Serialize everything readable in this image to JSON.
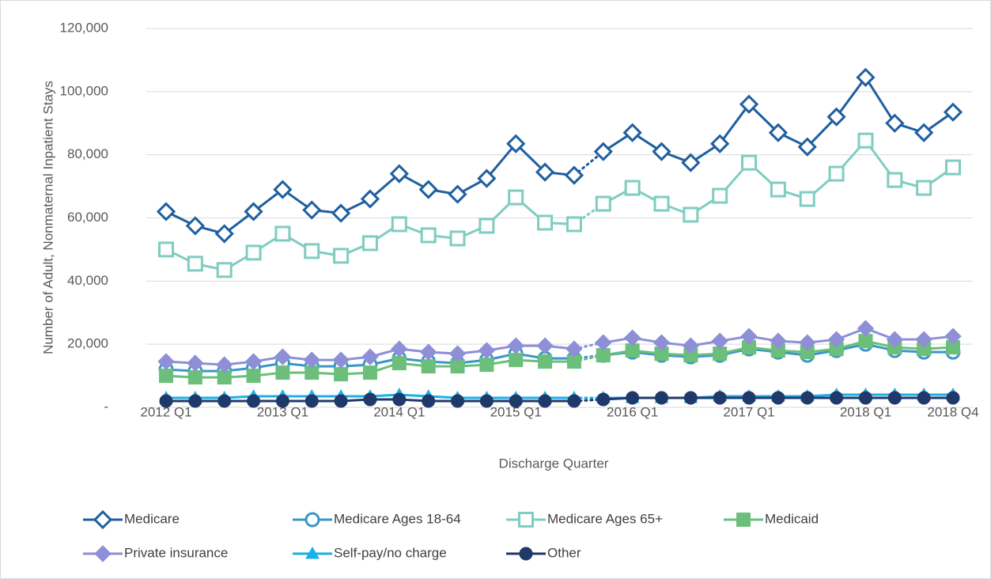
{
  "chart_data": {
    "type": "line",
    "x_label": "Discharge Quarter",
    "y_label": "Number of Adult, Nonmaternal Inpatient Stays",
    "categories": [
      "2012 Q1",
      null,
      null,
      null,
      "2013 Q1",
      null,
      null,
      null,
      "2014 Q1",
      null,
      null,
      null,
      "2015 Q1",
      null,
      null,
      null,
      "2016 Q1",
      null,
      null,
      null,
      "2017 Q1",
      null,
      null,
      null,
      "2018 Q1",
      null,
      null,
      "2018 Q4"
    ],
    "ylim": [
      0,
      120000
    ],
    "yticks": [
      {
        "value": 0,
        "label": "-"
      },
      {
        "value": 20000,
        "label": "20,000"
      },
      {
        "value": 40000,
        "label": "40,000"
      },
      {
        "value": 60000,
        "label": "60,000"
      },
      {
        "value": 80000,
        "label": "80,000"
      },
      {
        "value": 100000,
        "label": "100,000"
      },
      {
        "value": 120000,
        "label": "120,000"
      }
    ],
    "grid": true,
    "legend": "bottom",
    "series": [
      {
        "name": "Medicare",
        "color": "#1f5fa0",
        "marker": "diamond-open",
        "values": [
          62000,
          57500,
          55000,
          62000,
          69000,
          62500,
          61500,
          66000,
          74000,
          69000,
          67500,
          72500,
          83500,
          74500,
          73500,
          81000,
          87000,
          81000,
          77500,
          83500,
          96000,
          87000,
          82500,
          92000,
          104500,
          90000,
          87000,
          93500
        ]
      },
      {
        "name": "Medicare Ages 18-64",
        "color": "#3a96c8",
        "marker": "circle-open",
        "values": [
          12000,
          11500,
          11500,
          12500,
          14000,
          13000,
          13000,
          13500,
          15500,
          14500,
          14000,
          15000,
          17000,
          15500,
          15500,
          16500,
          17500,
          16500,
          16000,
          16500,
          18500,
          17500,
          16500,
          18000,
          20000,
          18000,
          17500,
          17500
        ]
      },
      {
        "name": "Medicare Ages 65+",
        "color": "#7fcdc0",
        "marker": "square-open",
        "values": [
          50000,
          45500,
          43500,
          49000,
          55000,
          49500,
          48000,
          52000,
          58000,
          54500,
          53500,
          57500,
          66500,
          58500,
          58000,
          64500,
          69500,
          64500,
          61000,
          67000,
          77500,
          69000,
          66000,
          74000,
          84500,
          72000,
          69500,
          76000
        ]
      },
      {
        "name": "Medicaid",
        "color": "#6bbf7b",
        "marker": "square",
        "values": [
          10000,
          9500,
          9500,
          10000,
          11000,
          11000,
          10500,
          11000,
          14000,
          13000,
          13000,
          13500,
          15000,
          14500,
          14500,
          16500,
          18000,
          17000,
          16500,
          17000,
          19000,
          18000,
          17500,
          18500,
          21000,
          19000,
          18500,
          19000
        ]
      },
      {
        "name": "Private insurance",
        "color": "#8e8fd6",
        "marker": "diamond",
        "values": [
          14500,
          14000,
          13500,
          14500,
          16000,
          15000,
          15000,
          16000,
          18500,
          17500,
          17000,
          18000,
          19500,
          19500,
          18500,
          20500,
          22000,
          20500,
          19500,
          21000,
          22500,
          21000,
          20500,
          21500,
          25000,
          21500,
          21500,
          22500
        ]
      },
      {
        "name": "Self-pay/no charge",
        "color": "#1ab0e8",
        "marker": "triangle",
        "values": [
          3000,
          3000,
          3000,
          3500,
          3500,
          3500,
          3500,
          3500,
          4000,
          3500,
          3000,
          3000,
          3000,
          3000,
          3000,
          3000,
          3000,
          3000,
          3000,
          3500,
          3500,
          3500,
          3500,
          4000,
          4000,
          4000,
          4000,
          4000
        ]
      },
      {
        "name": "Other",
        "color": "#1f3a6a",
        "marker": "circle",
        "values": [
          2000,
          2000,
          2000,
          2000,
          2000,
          2000,
          2000,
          2500,
          2500,
          2000,
          2000,
          2000,
          2000,
          2000,
          2000,
          2500,
          3000,
          3000,
          3000,
          3000,
          3000,
          3000,
          3000,
          3000,
          3000,
          3000,
          3000,
          3000
        ]
      }
    ]
  }
}
